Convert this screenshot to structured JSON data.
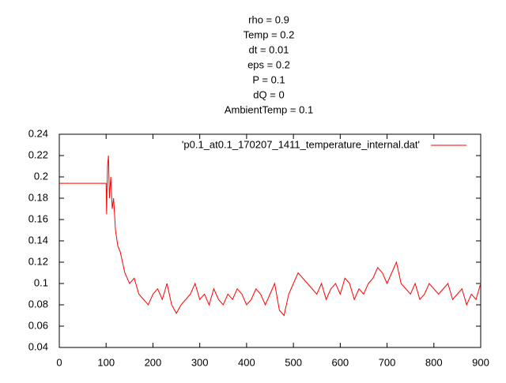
{
  "chart_data": {
    "type": "line",
    "title": [
      "rho = 0.9",
      "Temp = 0.2",
      "dt = 0.01",
      "eps = 0.2",
      "P = 0.1",
      "dQ = 0",
      "AmbientTemp = 0.1"
    ],
    "x": [
      0,
      100,
      101,
      103,
      105,
      107,
      110,
      113,
      116,
      120,
      125,
      130,
      140,
      150,
      160,
      170,
      180,
      190,
      200,
      210,
      220,
      230,
      240,
      250,
      260,
      270,
      280,
      290,
      300,
      310,
      320,
      330,
      340,
      350,
      360,
      370,
      380,
      390,
      400,
      410,
      420,
      430,
      440,
      450,
      460,
      470,
      480,
      490,
      500,
      510,
      520,
      530,
      540,
      550,
      560,
      570,
      580,
      590,
      600,
      610,
      620,
      630,
      640,
      650,
      660,
      670,
      680,
      690,
      700,
      710,
      720,
      730,
      740,
      750,
      760,
      770,
      780,
      790,
      800,
      810,
      820,
      830,
      840,
      850,
      860,
      870,
      880,
      890,
      900
    ],
    "series": [
      {
        "name": "'p0.1_at0.1_170207_1411_temperature_internal.dat'",
        "color": "#ff0000",
        "values": [
          0.194,
          0.194,
          0.165,
          0.21,
          0.22,
          0.18,
          0.2,
          0.17,
          0.18,
          0.15,
          0.135,
          0.13,
          0.11,
          0.1,
          0.105,
          0.09,
          0.085,
          0.08,
          0.09,
          0.095,
          0.085,
          0.1,
          0.08,
          0.072,
          0.08,
          0.085,
          0.09,
          0.1,
          0.085,
          0.09,
          0.08,
          0.095,
          0.085,
          0.08,
          0.09,
          0.085,
          0.095,
          0.09,
          0.08,
          0.085,
          0.095,
          0.09,
          0.08,
          0.09,
          0.1,
          0.075,
          0.07,
          0.09,
          0.1,
          0.11,
          0.105,
          0.1,
          0.095,
          0.09,
          0.1,
          0.085,
          0.095,
          0.1,
          0.09,
          0.105,
          0.1,
          0.085,
          0.095,
          0.09,
          0.1,
          0.105,
          0.115,
          0.11,
          0.1,
          0.11,
          0.12,
          0.1,
          0.095,
          0.09,
          0.1,
          0.085,
          0.09,
          0.1,
          0.095,
          0.09,
          0.095,
          0.1,
          0.085,
          0.09,
          0.095,
          0.08,
          0.09,
          0.085,
          0.1
        ]
      }
    ],
    "xlim": [
      0,
      900
    ],
    "xticks": [
      0,
      100,
      200,
      300,
      400,
      500,
      600,
      700,
      800,
      900
    ],
    "ylim": [
      0.04,
      0.24
    ],
    "yticks": [
      0.04,
      0.06,
      0.08,
      0.1,
      0.12,
      0.14,
      0.16,
      0.18,
      0.2,
      0.22,
      0.24
    ],
    "legend": "top-right"
  }
}
